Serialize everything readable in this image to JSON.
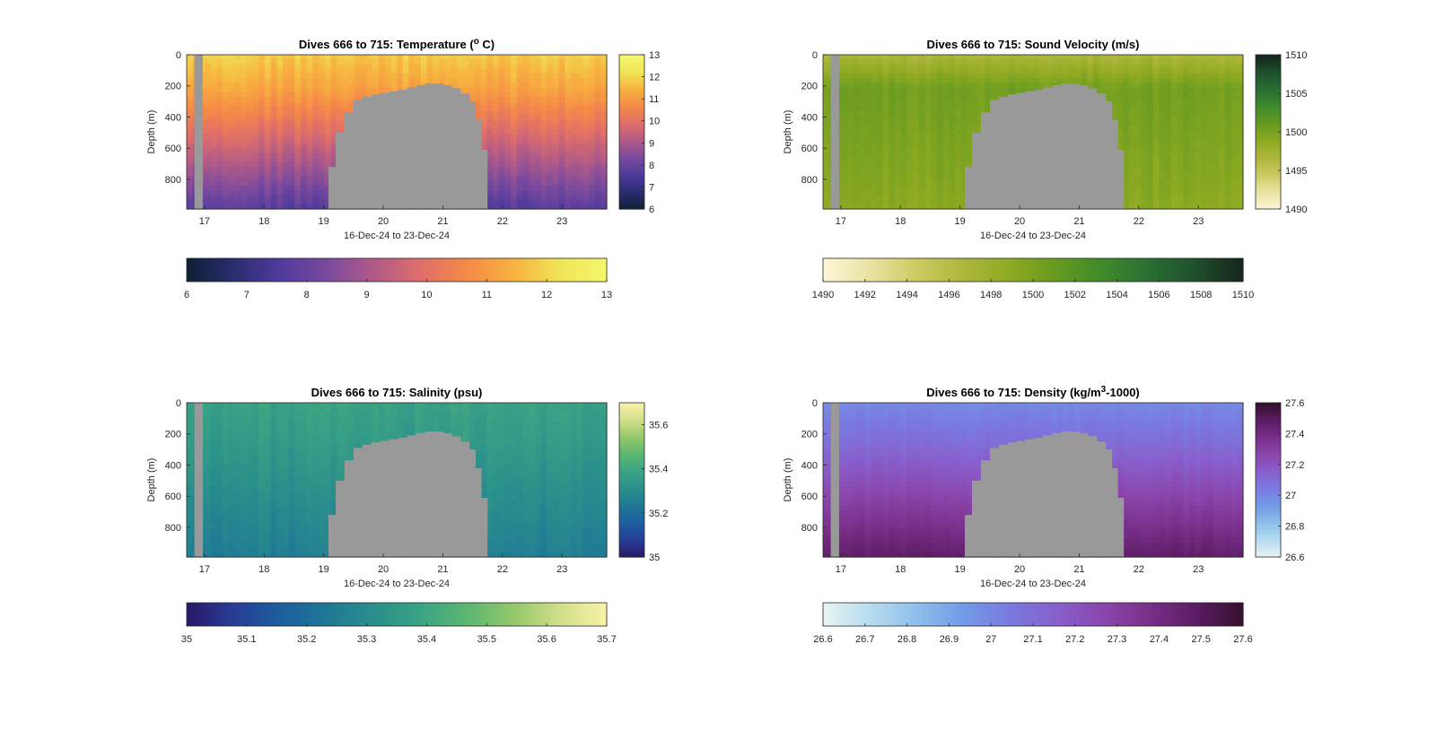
{
  "figure": {
    "background": "#ffffff",
    "mask_color": "#999999",
    "xlabel": "16-Dec-24 to 23-Dec-24"
  },
  "chart_data": [
    {
      "type": "heatmap",
      "id": "temperature",
      "title_parts": [
        "Dives 666 to 715: Temperature (",
        "o",
        " C)"
      ],
      "ylabel": "Depth (m)",
      "xlabel": "16-Dec-24 to 23-Dec-24",
      "xlim": [
        16.7,
        23.75
      ],
      "ylim": [
        0,
        990
      ],
      "x_ticks": [
        17,
        18,
        19,
        20,
        21,
        22,
        23
      ],
      "y_ticks": [
        0,
        200,
        400,
        600,
        800
      ],
      "clim": [
        6,
        13
      ],
      "side_colorbar_ticks": [
        "6",
        "7",
        "8",
        "9",
        "10",
        "11",
        "12",
        "13"
      ],
      "bottom_colorbar_ticks": [
        "6",
        "7",
        "8",
        "9",
        "10",
        "11",
        "12",
        "13"
      ],
      "colormap": [
        "#0f1f35",
        "#2a2d6e",
        "#4f3a9c",
        "#7a4a9e",
        "#b05a88",
        "#de6e6a",
        "#f58a48",
        "#f7b13f",
        "#f0e456",
        "#f4f76e"
      ],
      "profile": {
        "surface": 11.8,
        "depth_200": 11.2,
        "bottom": 7.6,
        "surface_layer_m": 200,
        "variation": 0.45
      }
    },
    {
      "type": "heatmap",
      "id": "sound_velocity",
      "title_parts": [
        "Dives 666 to 715: Sound Velocity (m/s)"
      ],
      "ylabel": "Depth (m)",
      "xlabel": "16-Dec-24 to 23-Dec-24",
      "xlim": [
        16.7,
        23.75
      ],
      "ylim": [
        0,
        990
      ],
      "x_ticks": [
        17,
        18,
        19,
        20,
        21,
        22,
        23
      ],
      "y_ticks": [
        0,
        200,
        400,
        600,
        800
      ],
      "clim": [
        1490,
        1510
      ],
      "side_colorbar_ticks": [
        "1490",
        "1495",
        "1500",
        "1505",
        "1510"
      ],
      "bottom_colorbar_ticks": [
        "1490",
        "1492",
        "1494",
        "1496",
        "1498",
        "1500",
        "1502",
        "1504",
        "1506",
        "1508",
        "1510"
      ],
      "colormap": [
        "#fdf6d8",
        "#e9e3a3",
        "#cccb62",
        "#aeb63c",
        "#8eaa22",
        "#669a20",
        "#3f8a2b",
        "#2a6e34",
        "#1f4f2c",
        "#15261c"
      ],
      "profile": {
        "surface": 1497.0,
        "depth_200": 1500.5,
        "bottom": 1499.0,
        "surface_layer_m": 200,
        "variation": 1.0
      }
    },
    {
      "type": "heatmap",
      "id": "salinity",
      "title_parts": [
        "Dives 666 to 715: Salinity (psu)"
      ],
      "ylabel": "Depth (m)",
      "xlabel": "16-Dec-24 to 23-Dec-24",
      "xlim": [
        16.7,
        23.75
      ],
      "ylim": [
        0,
        990
      ],
      "x_ticks": [
        17,
        18,
        19,
        20,
        21,
        22,
        23
      ],
      "y_ticks": [
        0,
        200,
        400,
        600,
        800
      ],
      "clim": [
        35,
        35.7
      ],
      "side_colorbar_ticks": [
        "35",
        "35.2",
        "35.4",
        "35.6"
      ],
      "bottom_colorbar_ticks": [
        "35",
        "35.1",
        "35.2",
        "35.3",
        "35.4",
        "35.5",
        "35.6",
        "35.7"
      ],
      "colormap": [
        "#2a1868",
        "#273d96",
        "#1d5e9e",
        "#1f7896",
        "#2a8f8c",
        "#3aa384",
        "#5cb671",
        "#93c76a",
        "#d2de8a",
        "#f6f3a8"
      ],
      "profile": {
        "surface": 35.38,
        "depth_200": 35.36,
        "bottom": 35.25,
        "surface_layer_m": 200,
        "variation": 0.04
      }
    },
    {
      "type": "heatmap",
      "id": "density",
      "title_parts": [
        "Dives 666 to 715: Density (kg/m",
        "3",
        "-1000)"
      ],
      "ylabel": "Depth (m)",
      "xlabel": "16-Dec-24 to 23-Dec-24",
      "xlim": [
        16.7,
        23.75
      ],
      "ylim": [
        0,
        990
      ],
      "x_ticks": [
        17,
        18,
        19,
        20,
        21,
        22,
        23
      ],
      "y_ticks": [
        0,
        200,
        400,
        600,
        800
      ],
      "clim": [
        26.6,
        27.6
      ],
      "side_colorbar_ticks": [
        "26.6",
        "26.8",
        "27",
        "27.2",
        "27.4",
        "27.6"
      ],
      "bottom_colorbar_ticks": [
        "26.6",
        "26.7",
        "26.8",
        "26.9",
        "27",
        "27.1",
        "27.2",
        "27.3",
        "27.4",
        "27.5",
        "27.6"
      ],
      "colormap": [
        "#e8f4f2",
        "#b6dcef",
        "#8ebfeb",
        "#729be6",
        "#7a7ae0",
        "#8860cd",
        "#8a47ad",
        "#7a2f8a",
        "#5a1c62",
        "#36102f"
      ],
      "profile": {
        "surface": 27.0,
        "depth_200": 27.08,
        "bottom": 27.48,
        "surface_layer_m": 200,
        "variation": 0.03
      }
    }
  ],
  "mask": {
    "early_gap": {
      "x0": 16.83,
      "x1": 16.97
    },
    "bathymetry_profile": [
      [
        19.08,
        720
      ],
      [
        19.2,
        500
      ],
      [
        19.35,
        370
      ],
      [
        19.5,
        290
      ],
      [
        19.65,
        270
      ],
      [
        19.8,
        255
      ],
      [
        19.95,
        245
      ],
      [
        20.1,
        235
      ],
      [
        20.25,
        225
      ],
      [
        20.4,
        210
      ],
      [
        20.55,
        195
      ],
      [
        20.7,
        185
      ],
      [
        20.85,
        185
      ],
      [
        21.0,
        195
      ],
      [
        21.15,
        215
      ],
      [
        21.3,
        250
      ],
      [
        21.45,
        300
      ],
      [
        21.55,
        420
      ],
      [
        21.65,
        610
      ],
      [
        21.75,
        990
      ]
    ]
  }
}
